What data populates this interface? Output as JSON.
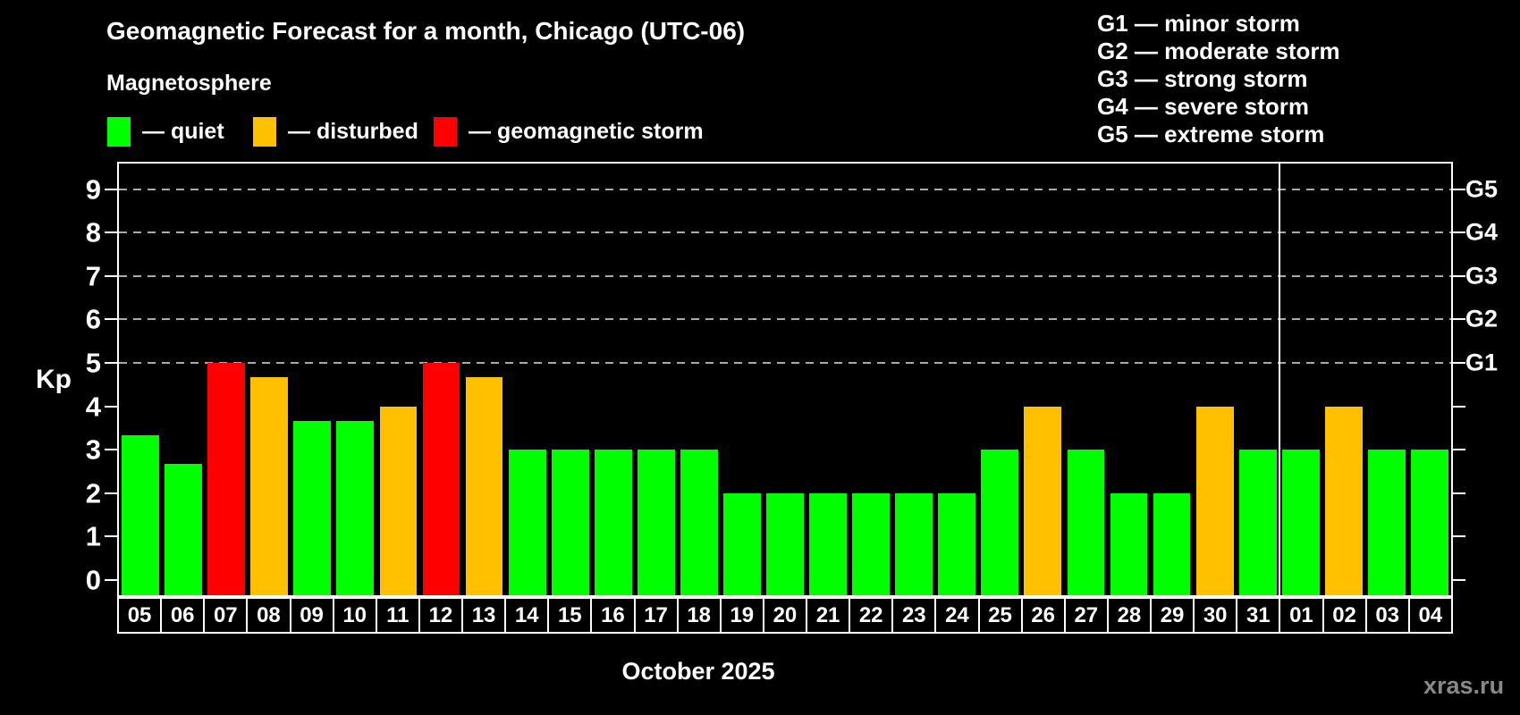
{
  "title": "Geomagnetic Forecast for a month, Chicago (UTC-06)",
  "legend_title": "Magnetosphere",
  "ylabel": "Kp",
  "xlabel": "October 2025",
  "watermark": "xras.ru",
  "colors": {
    "quiet": "#00ff00",
    "disturbed": "#ffc000",
    "storm": "#ff0000",
    "background": "#000000",
    "axis": "#ffffff",
    "grid": "#aaaaaa",
    "text": "#ffffff",
    "watermark_text": "#888888"
  },
  "legend": [
    {
      "key": "quiet",
      "label": "— quiet"
    },
    {
      "key": "disturbed",
      "label": "— disturbed"
    },
    {
      "key": "storm",
      "label": "— geomagnetic storm"
    }
  ],
  "g_legend": [
    "G1 — minor storm",
    "G2 — moderate storm",
    "G3 — strong storm",
    "G4 — severe storm",
    "G5 — extreme storm"
  ],
  "chart_data": {
    "type": "bar",
    "title": "Geomagnetic Forecast for a month, Chicago (UTC-06)",
    "xlabel": "October 2025",
    "ylabel": "Kp",
    "categories": [
      "05",
      "06",
      "07",
      "08",
      "09",
      "10",
      "11",
      "12",
      "13",
      "14",
      "15",
      "16",
      "17",
      "18",
      "19",
      "20",
      "21",
      "22",
      "23",
      "24",
      "25",
      "26",
      "27",
      "28",
      "29",
      "30",
      "31",
      "01",
      "02",
      "03",
      "04"
    ],
    "values": [
      3.33,
      2.67,
      5,
      4.67,
      3.67,
      3.67,
      4,
      5,
      4.67,
      3,
      3,
      3,
      3,
      3,
      2,
      2,
      2,
      2,
      2,
      2,
      3,
      4,
      3,
      2,
      2,
      4,
      3,
      3,
      4,
      3,
      3
    ],
    "statuses": [
      "quiet",
      "quiet",
      "storm",
      "disturbed",
      "quiet",
      "quiet",
      "disturbed",
      "storm",
      "disturbed",
      "quiet",
      "quiet",
      "quiet",
      "quiet",
      "quiet",
      "quiet",
      "quiet",
      "quiet",
      "quiet",
      "quiet",
      "quiet",
      "quiet",
      "disturbed",
      "quiet",
      "quiet",
      "quiet",
      "disturbed",
      "quiet",
      "quiet",
      "disturbed",
      "quiet",
      "quiet"
    ],
    "ylim": [
      -0.35,
      9.59
    ],
    "yticks": [
      0,
      1,
      2,
      3,
      4,
      5,
      6,
      7,
      8,
      9
    ],
    "gridlines": [
      5,
      6,
      7,
      8,
      9
    ],
    "grid_style": "dashed",
    "right_axis": [
      {
        "kp": 5,
        "label": "G1"
      },
      {
        "kp": 6,
        "label": "G2"
      },
      {
        "kp": 7,
        "label": "G3"
      },
      {
        "kp": 8,
        "label": "G4"
      },
      {
        "kp": 9,
        "label": "G5"
      }
    ],
    "month_separator_index": 27,
    "legend_position": "top"
  }
}
